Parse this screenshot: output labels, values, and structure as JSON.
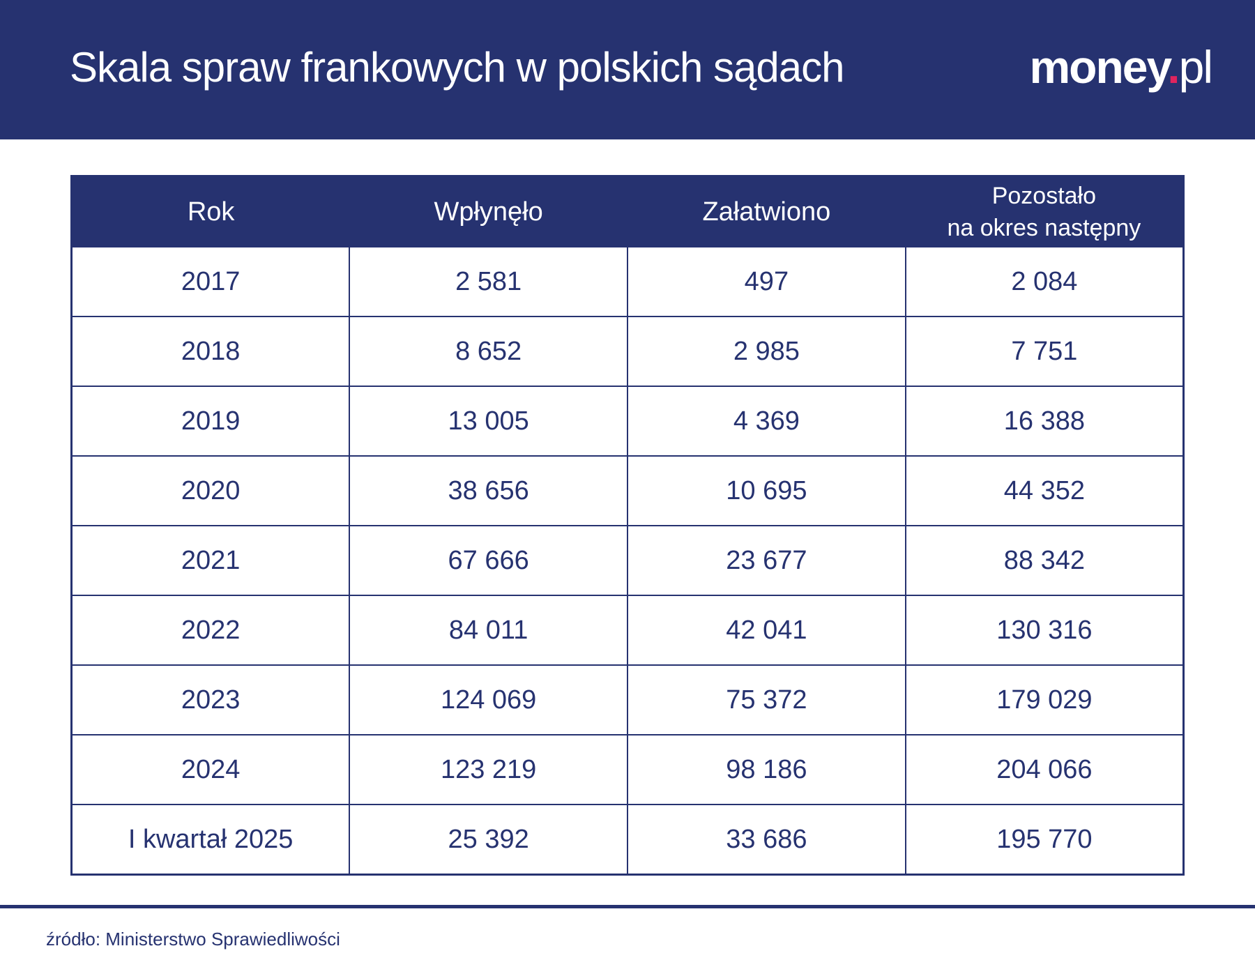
{
  "header": {
    "title": "Skala spraw frankowych w polskich sądach",
    "logo": {
      "main": "money",
      "dot": ".",
      "suffix": "pl"
    }
  },
  "colors": {
    "navy": "#263270",
    "logo_dot": "#e0245e"
  },
  "table": {
    "columns": [
      "Rok",
      "Wpłynęło",
      "Załatwiono",
      "Pozostało",
      "na okres następny"
    ],
    "rows": [
      [
        "2017",
        "2 581",
        "497",
        "2 084"
      ],
      [
        "2018",
        "8 652",
        "2 985",
        "7 751"
      ],
      [
        "2019",
        "13 005",
        "4 369",
        "16 388"
      ],
      [
        "2020",
        "38 656",
        "10 695",
        "44 352"
      ],
      [
        "2021",
        "67 666",
        "23 677",
        "88 342"
      ],
      [
        "2022",
        "84 011",
        "42 041",
        "130 316"
      ],
      [
        "2023",
        "124 069",
        "75 372",
        "179 029"
      ],
      [
        "2024",
        "123 219",
        "98 186",
        "204 066"
      ],
      [
        "I kwartał 2025",
        "25 392",
        "33 686",
        "195 770"
      ]
    ]
  },
  "footer": {
    "source": "źródło: Ministerstwo Sprawiedliwości"
  }
}
